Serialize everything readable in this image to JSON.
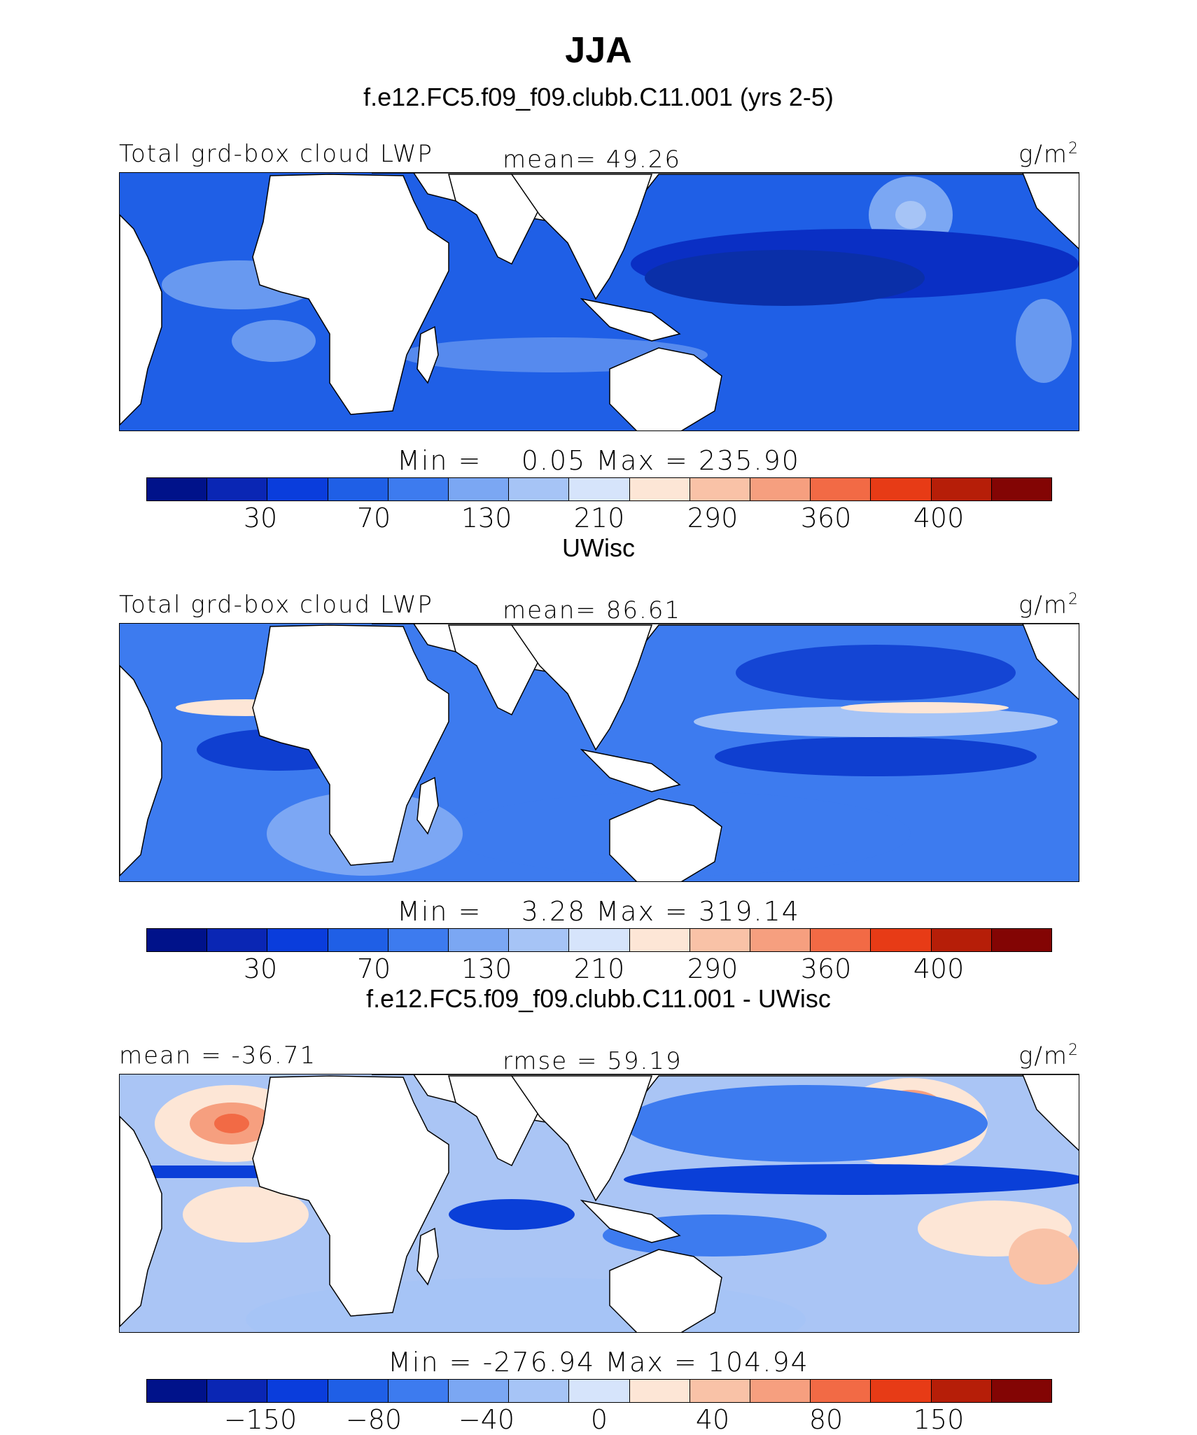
{
  "title": "JJA",
  "panels": [
    {
      "id": "model",
      "heading": "f.e12.FC5.f09_f09.clubb.C11.001 (yrs 2-5)",
      "variable": "Total grd-box cloud LWP",
      "stat": "mean=  49.26",
      "units": "g/m",
      "units_sup": "2",
      "minmax": "Min =    0.05 Max = 235.90",
      "colorbar_ticks": [
        "30",
        "70",
        "130",
        "210",
        "290",
        "360",
        "400"
      ],
      "palette": "abs",
      "field": {
        "base": "#1f5fe6",
        "deep": "#0a2fc4",
        "light": "#7ba7f3"
      }
    },
    {
      "id": "obs",
      "heading": "UWisc",
      "variable": "Total grd-box cloud LWP",
      "stat": "mean=  86.61",
      "units": "g/m",
      "units_sup": "2",
      "minmax": "Min =    3.28 Max = 319.14",
      "colorbar_ticks": [
        "30",
        "70",
        "130",
        "210",
        "290",
        "360",
        "400"
      ],
      "palette": "abs",
      "field": {
        "base": "#3d7bef",
        "deep": "#0f3fd0",
        "light": "#a6c4f6"
      }
    },
    {
      "id": "diff",
      "heading": "f.e12.FC5.f09_f09.clubb.C11.001 - UWisc",
      "variable": "mean = -36.71",
      "stat": "rmse =  59.19",
      "units": "g/m",
      "units_sup": "2",
      "minmax": "Min = -276.94 Max = 104.94",
      "colorbar_ticks": [
        "−150",
        "−80",
        "−40",
        "0",
        "40",
        "80",
        "150"
      ],
      "palette": "abs",
      "field": {
        "base": "#aac5f5",
        "deep": "#0a3fd8",
        "light": "#f6c0a6"
      }
    }
  ],
  "colorbar_colors": [
    "#00128a",
    "#0a26b4",
    "#0a3ddc",
    "#1f5fe6",
    "#3d7bef",
    "#7ba7f3",
    "#a6c4f6",
    "#d6e4fb",
    "#fde6d6",
    "#f9c2a7",
    "#f69f7f",
    "#f26a45",
    "#e73b16",
    "#b61e08",
    "#830504"
  ]
}
